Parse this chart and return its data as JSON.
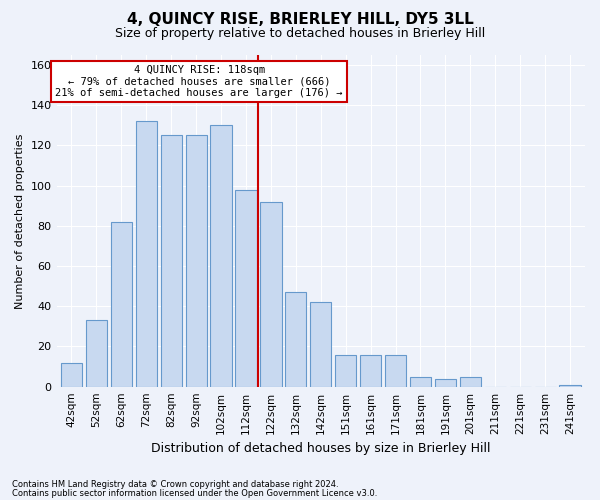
{
  "title": "4, QUINCY RISE, BRIERLEY HILL, DY5 3LL",
  "subtitle": "Size of property relative to detached houses in Brierley Hill",
  "xlabel": "Distribution of detached houses by size in Brierley Hill",
  "ylabel": "Number of detached properties",
  "categories": [
    "42sqm",
    "52sqm",
    "62sqm",
    "72sqm",
    "82sqm",
    "92sqm",
    "102sqm",
    "112sqm",
    "122sqm",
    "132sqm",
    "142sqm",
    "151sqm",
    "161sqm",
    "171sqm",
    "181sqm",
    "191sqm",
    "201sqm",
    "211sqm",
    "221sqm",
    "231sqm",
    "241sqm"
  ],
  "bar_heights": [
    12,
    33,
    82,
    132,
    125,
    125,
    130,
    98,
    92,
    47,
    42,
    16,
    16,
    16,
    5,
    4,
    5,
    0,
    0,
    0,
    1
  ],
  "bar_color": "#c8d9f0",
  "bar_edge_color": "#6699cc",
  "ylim": [
    0,
    165
  ],
  "yticks": [
    0,
    20,
    40,
    60,
    80,
    100,
    120,
    140,
    160
  ],
  "annotation_line1": "4 QUINCY RISE: 118sqm",
  "annotation_line2": "← 79% of detached houses are smaller (666)",
  "annotation_line3": "21% of semi-detached houses are larger (176) →",
  "annotation_box_color": "#ffffff",
  "annotation_border_color": "#cc0000",
  "footnote1": "Contains HM Land Registry data © Crown copyright and database right 2024.",
  "footnote2": "Contains public sector information licensed under the Open Government Licence v3.0.",
  "background_color": "#eef2fa",
  "grid_color": "#ffffff",
  "title_fontsize": 11,
  "subtitle_fontsize": 9,
  "ylabel_fontsize": 8,
  "xlabel_fontsize": 9,
  "bar_width": 0.85,
  "reference_line_index": 8
}
